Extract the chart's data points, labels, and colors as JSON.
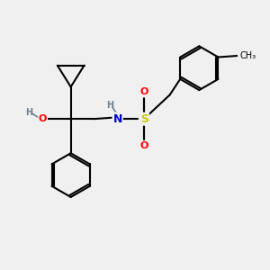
{
  "bg_color": "#f0f0f0",
  "bond_color": "#000000",
  "atom_colors": {
    "O": "#ff0000",
    "N": "#0000cd",
    "S": "#cccc00",
    "H": "#708090",
    "C": "#000000"
  },
  "fig_w": 3.0,
  "fig_h": 3.0,
  "dpi": 100,
  "xlim": [
    0,
    10
  ],
  "ylim": [
    0,
    10
  ]
}
